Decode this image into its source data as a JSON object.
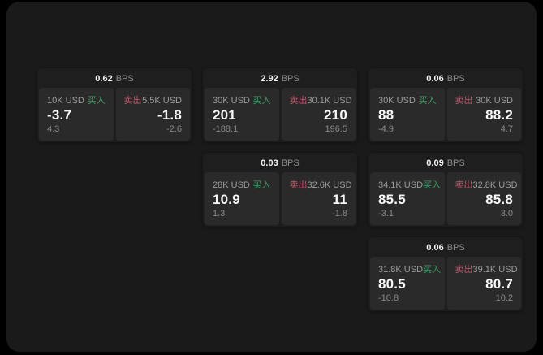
{
  "theme": {
    "background": "#000000",
    "surface": "#1a1a1b",
    "card": "#1e1e1f",
    "panel": "#2a2a2b",
    "buy_color": "#3f9e63",
    "sell_color": "#c2566b"
  },
  "cards": [
    {
      "bps_value": "0.62",
      "bps_unit": "BPS",
      "buy": {
        "amount": "10K USD",
        "label": "买入",
        "price": "-3.7",
        "change": "4.3"
      },
      "sell": {
        "label": "卖出",
        "amount": "5.5K USD",
        "price": "-1.8",
        "change": "-2.6"
      }
    },
    {
      "bps_value": "2.92",
      "bps_unit": "BPS",
      "buy": {
        "amount": "30K USD",
        "label": "买入",
        "price": "201",
        "change": "-188.1"
      },
      "sell": {
        "label": "卖出",
        "amount": "30.1K USD",
        "price": "210",
        "change": "196.5"
      }
    },
    {
      "bps_value": "0.06",
      "bps_unit": "BPS",
      "buy": {
        "amount": "30K USD",
        "label": "买入",
        "price": "88",
        "change": "-4.9"
      },
      "sell": {
        "label": "卖出",
        "amount": "30K USD",
        "price": "88.2",
        "change": "4.7"
      }
    },
    {
      "bps_value": "0.03",
      "bps_unit": "BPS",
      "buy": {
        "amount": "28K USD",
        "label": "买入",
        "price": "10.9",
        "change": "1.3"
      },
      "sell": {
        "label": "卖出",
        "amount": "32.6K USD",
        "price": "11",
        "change": "-1.8"
      }
    },
    {
      "bps_value": "0.09",
      "bps_unit": "BPS",
      "buy": {
        "amount": "34.1K USD",
        "label": "买入",
        "price": "85.5",
        "change": "-3.1"
      },
      "sell": {
        "label": "卖出",
        "amount": "32.8K USD",
        "price": "85.8",
        "change": "3.0"
      }
    },
    {
      "bps_value": "0.06",
      "bps_unit": "BPS",
      "buy": {
        "amount": "31.8K USD",
        "label": "买入",
        "price": "80.5",
        "change": "-10.8"
      },
      "sell": {
        "label": "卖出",
        "amount": "39.1K USD",
        "price": "80.7",
        "change": "10.2"
      }
    }
  ]
}
